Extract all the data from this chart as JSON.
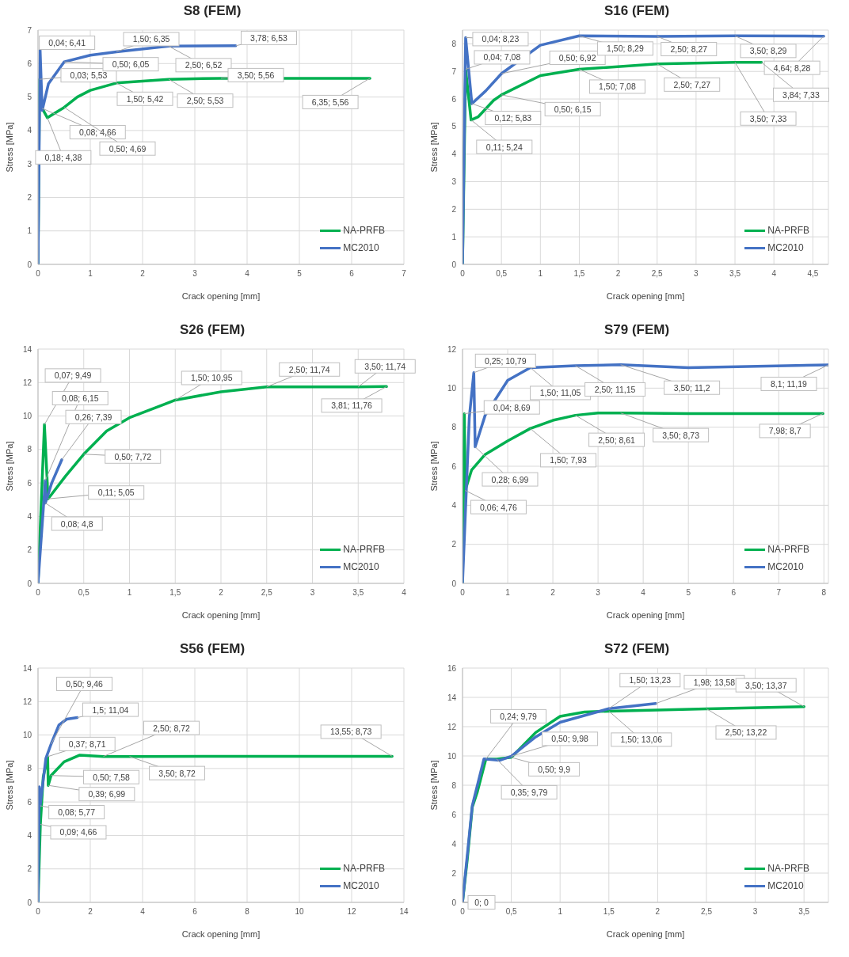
{
  "chart_data": [
    {
      "type": "line",
      "title": "S8 (FEM)",
      "xlabel": "Crack opening [mm]",
      "ylabel": "Stress [MPa]",
      "xlim": [
        0,
        7
      ],
      "xticks": [
        0,
        1,
        2,
        3,
        4,
        5,
        6,
        7
      ],
      "ylim": [
        0,
        7
      ],
      "yticks": [
        0,
        1,
        2,
        3,
        4,
        5,
        6,
        7
      ],
      "grid": true,
      "legend": "bottom right",
      "marker": "none",
      "series": [
        {
          "name": "NA-PRFB",
          "color": "#00b050",
          "x": [
            0,
            0.03,
            0.08,
            0.18,
            0.3,
            0.5,
            0.75,
            1,
            1.5,
            2.5,
            3.5,
            6.35
          ],
          "values": [
            0,
            5.53,
            4.66,
            4.38,
            4.5,
            4.69,
            5.0,
            5.2,
            5.42,
            5.53,
            5.56,
            5.56
          ]
        },
        {
          "name": "MC2010",
          "color": "#4472c4",
          "x": [
            0,
            0.04,
            0.08,
            0.2,
            0.5,
            1,
            1.5,
            2.5,
            3.78
          ],
          "values": [
            0,
            6.41,
            4.6,
            5.4,
            6.05,
            6.25,
            6.35,
            6.52,
            6.53
          ]
        }
      ],
      "annotations": [
        {
          "text": "0,04; 6,41",
          "x": 0.04,
          "y": 6.41
        },
        {
          "text": "0,03; 5,53",
          "x": 0.03,
          "y": 5.53
        },
        {
          "text": "0,08; 4,66",
          "x": 0.08,
          "y": 4.66
        },
        {
          "text": "0,18; 4,38",
          "x": 0.18,
          "y": 4.38
        },
        {
          "text": "0,50; 4,69",
          "x": 0.5,
          "y": 4.69
        },
        {
          "text": "0,50; 6,05",
          "x": 0.5,
          "y": 6.05
        },
        {
          "text": "1,50; 6,35",
          "x": 1.5,
          "y": 6.35
        },
        {
          "text": "2,50; 6,52",
          "x": 2.5,
          "y": 6.52
        },
        {
          "text": "3,78; 6,53",
          "x": 3.78,
          "y": 6.53
        },
        {
          "text": "1,50; 5,42",
          "x": 1.5,
          "y": 5.42
        },
        {
          "text": "2,50; 5,53",
          "x": 2.5,
          "y": 5.53
        },
        {
          "text": "3,50; 5,56",
          "x": 3.5,
          "y": 5.56
        },
        {
          "text": "6,35; 5,56",
          "x": 6.35,
          "y": 5.56
        }
      ]
    },
    {
      "type": "line",
      "title": "S16 (FEM)",
      "xlabel": "Crack opening [mm]",
      "ylabel": "Stress [MPa]",
      "xlim": [
        0,
        4.7
      ],
      "xticks": [
        0,
        {
          "value": 0.5,
          "label": "0,5"
        },
        1,
        {
          "value": 1.5,
          "label": "1,5"
        },
        2,
        {
          "value": 2.5,
          "label": "2,5"
        },
        3,
        {
          "value": 3.5,
          "label": "3,5"
        },
        4,
        {
          "value": 4.5,
          "label": "4,5"
        }
      ],
      "ylim": [
        0,
        8.5
      ],
      "yticks": [
        0,
        1,
        2,
        3,
        4,
        5,
        6,
        7,
        8
      ],
      "grid": true,
      "legend": "bottom right",
      "marker": "none",
      "series": [
        {
          "name": "NA-PRFB",
          "color": "#00b050",
          "x": [
            0,
            0.04,
            0.11,
            0.2,
            0.4,
            0.5,
            1,
            1.5,
            2.5,
            3.5,
            3.84
          ],
          "values": [
            0,
            7.08,
            5.24,
            5.35,
            5.95,
            6.15,
            6.85,
            7.08,
            7.27,
            7.33,
            7.33
          ]
        },
        {
          "name": "MC2010",
          "color": "#4472c4",
          "x": [
            0,
            0.04,
            0.12,
            0.3,
            0.5,
            1,
            1.5,
            2.5,
            3.5,
            4.64
          ],
          "values": [
            0,
            8.23,
            5.83,
            6.3,
            6.92,
            7.95,
            8.29,
            8.27,
            8.29,
            8.28
          ]
        }
      ],
      "annotations": [
        {
          "text": "0,04; 8,23",
          "x": 0.04,
          "y": 8.23
        },
        {
          "text": "0,04; 7,08",
          "x": 0.04,
          "y": 7.08
        },
        {
          "text": "0,12; 5,83",
          "x": 0.12,
          "y": 5.83
        },
        {
          "text": "0,11; 5,24",
          "x": 0.11,
          "y": 5.24
        },
        {
          "text": "0,50; 6,92",
          "x": 0.5,
          "y": 6.92
        },
        {
          "text": "0,50; 6,15",
          "x": 0.5,
          "y": 6.15
        },
        {
          "text": "1,50; 8,29",
          "x": 1.5,
          "y": 8.29
        },
        {
          "text": "1,50; 7,08",
          "x": 1.5,
          "y": 7.08
        },
        {
          "text": "2,50; 8,27",
          "x": 2.5,
          "y": 8.27
        },
        {
          "text": "2,50; 7,27",
          "x": 2.5,
          "y": 7.27
        },
        {
          "text": "3,50; 8,29",
          "x": 3.5,
          "y": 8.29
        },
        {
          "text": "3,50; 7,33",
          "x": 3.5,
          "y": 7.33
        },
        {
          "text": "4,64; 8,28",
          "x": 4.64,
          "y": 8.28
        },
        {
          "text": "3,84; 7,33",
          "x": 3.84,
          "y": 7.33
        }
      ]
    },
    {
      "type": "line",
      "title": "S26 (FEM)",
      "xlabel": "Crack opening [mm]",
      "ylabel": "Stress [MPa]",
      "xlim": [
        0,
        4
      ],
      "xticks": [
        0,
        {
          "value": 0.5,
          "label": "0,5"
        },
        1,
        {
          "value": 1.5,
          "label": "1,5"
        },
        2,
        {
          "value": 2.5,
          "label": "2,5"
        },
        3,
        {
          "value": 3.5,
          "label": "3,5"
        },
        4
      ],
      "ylim": [
        0,
        14
      ],
      "yticks": [
        0,
        2,
        4,
        6,
        8,
        10,
        12,
        14
      ],
      "grid": true,
      "legend": "bottom right",
      "marker": "none",
      "series": [
        {
          "name": "NA-PRFB",
          "color": "#00b050",
          "x": [
            0,
            0.07,
            0.11,
            0.3,
            0.5,
            0.75,
            1,
            1.5,
            2,
            2.5,
            3.5,
            3.81
          ],
          "values": [
            0,
            9.49,
            5.05,
            6.4,
            7.72,
            9.1,
            9.9,
            10.95,
            11.45,
            11.74,
            11.74,
            11.76
          ]
        },
        {
          "name": "MC2010",
          "color": "#4472c4",
          "x": [
            0,
            0.08,
            0.08,
            0.15,
            0.26
          ],
          "values": [
            0,
            6.15,
            4.8,
            6.0,
            7.39
          ]
        }
      ],
      "annotations": [
        {
          "text": "0,07; 9,49",
          "x": 0.07,
          "y": 9.49
        },
        {
          "text": "0,08; 6,15",
          "x": 0.08,
          "y": 6.15
        },
        {
          "text": "0,26; 7,39",
          "x": 0.26,
          "y": 7.39
        },
        {
          "text": "0,11; 5,05",
          "x": 0.11,
          "y": 5.05
        },
        {
          "text": "0,08; 4,8",
          "x": 0.08,
          "y": 4.8
        },
        {
          "text": "0,50; 7,72",
          "x": 0.5,
          "y": 7.72
        },
        {
          "text": "1,50; 10,95",
          "x": 1.5,
          "y": 10.95
        },
        {
          "text": "2,50; 11,74",
          "x": 2.5,
          "y": 11.74
        },
        {
          "text": "3,50; 11,74",
          "x": 3.5,
          "y": 11.74
        },
        {
          "text": "3,81; 11,76",
          "x": 3.81,
          "y": 11.76
        }
      ]
    },
    {
      "type": "line",
      "title": "S79 (FEM)",
      "xlabel": "Crack opening [mm]",
      "ylabel": "Stress [MPa]",
      "xlim": [
        0,
        8.1
      ],
      "xticks": [
        0,
        1,
        2,
        3,
        4,
        5,
        6,
        7,
        8
      ],
      "ylim": [
        0,
        12
      ],
      "yticks": [
        0,
        2,
        4,
        6,
        8,
        10,
        12
      ],
      "grid": true,
      "legend": "bottom right",
      "marker": "none",
      "series": [
        {
          "name": "NA-PRFB",
          "color": "#00b050",
          "x": [
            0,
            0.04,
            0.06,
            0.2,
            0.5,
            1,
            1.5,
            2,
            2.5,
            3,
            3.5,
            5,
            7.98
          ],
          "values": [
            0,
            8.69,
            4.76,
            5.8,
            6.6,
            7.3,
            7.93,
            8.35,
            8.61,
            8.73,
            8.73,
            8.7,
            8.7
          ]
        },
        {
          "name": "MC2010",
          "color": "#4472c4",
          "x": [
            0,
            0.15,
            0.25,
            0.28,
            0.5,
            1,
            1.5,
            2.5,
            3.5,
            5,
            8.1
          ],
          "values": [
            0,
            8.5,
            10.79,
            6.99,
            8.6,
            10.4,
            11.05,
            11.15,
            11.2,
            11.05,
            11.19
          ]
        }
      ],
      "annotations": [
        {
          "text": "0,25; 10,79",
          "x": 0.25,
          "y": 10.79
        },
        {
          "text": "0,04; 8,69",
          "x": 0.04,
          "y": 8.69
        },
        {
          "text": "0,28; 6,99",
          "x": 0.28,
          "y": 6.99
        },
        {
          "text": "0,06; 4,76",
          "x": 0.06,
          "y": 4.76
        },
        {
          "text": "1,50; 11,05",
          "x": 1.5,
          "y": 11.05
        },
        {
          "text": "2,50; 11,15",
          "x": 2.5,
          "y": 11.15
        },
        {
          "text": "3,50; 11,2",
          "x": 3.5,
          "y": 11.2
        },
        {
          "text": "8,1; 11,19",
          "x": 8.1,
          "y": 11.19
        },
        {
          "text": "1,50; 7,93",
          "x": 1.5,
          "y": 7.93
        },
        {
          "text": "2,50; 8,61",
          "x": 2.5,
          "y": 8.61
        },
        {
          "text": "3,50; 8,73",
          "x": 3.5,
          "y": 8.73
        },
        {
          "text": "7,98; 8,7",
          "x": 7.98,
          "y": 8.7
        }
      ]
    },
    {
      "type": "line",
      "title": "S56 (FEM)",
      "xlabel": "Crack opening [mm]",
      "ylabel": "Stress [MPa]",
      "xlim": [
        0,
        14
      ],
      "xticks": [
        0,
        2,
        4,
        6,
        8,
        10,
        12,
        14
      ],
      "ylim": [
        0,
        14
      ],
      "yticks": [
        0,
        2,
        4,
        6,
        8,
        10,
        12,
        14
      ],
      "grid": true,
      "legend": "bottom right",
      "marker": "none",
      "series": [
        {
          "name": "NA-PRFB",
          "color": "#00b050",
          "x": [
            0,
            0.09,
            0.2,
            0.37,
            0.39,
            0.5,
            1,
            1.6,
            2.5,
            3.5,
            8,
            13.55
          ],
          "values": [
            0,
            4.66,
            7.5,
            8.71,
            6.99,
            7.58,
            8.4,
            8.8,
            8.72,
            8.72,
            8.73,
            8.73
          ]
        },
        {
          "name": "MC2010",
          "color": "#4472c4",
          "x": [
            0,
            0.05,
            0.08,
            0.3,
            0.5,
            0.8,
            1.1,
            1.5
          ],
          "values": [
            0,
            6.9,
            5.77,
            8.6,
            9.46,
            10.6,
            10.95,
            11.04
          ]
        }
      ],
      "annotations": [
        {
          "text": "0,50; 9,46",
          "x": 0.5,
          "y": 9.46
        },
        {
          "text": "1,5; 11,04",
          "x": 1.5,
          "y": 11.04
        },
        {
          "text": "0,37; 8,71",
          "x": 0.37,
          "y": 8.71
        },
        {
          "text": "0,50; 7,58",
          "x": 0.5,
          "y": 7.58
        },
        {
          "text": "0,39; 6,99",
          "x": 0.39,
          "y": 6.99
        },
        {
          "text": "0,08; 5,77",
          "x": 0.08,
          "y": 5.77
        },
        {
          "text": "0,09; 4,66",
          "x": 0.09,
          "y": 4.66
        },
        {
          "text": "2,50; 8,72",
          "x": 2.5,
          "y": 8.72
        },
        {
          "text": "3,50; 8,72",
          "x": 3.5,
          "y": 8.72
        },
        {
          "text": "13,55; 8,73",
          "x": 13.55,
          "y": 8.73
        }
      ]
    },
    {
      "type": "line",
      "title": "S72 (FEM)",
      "xlabel": "Crack opening [mm]",
      "ylabel": "Stress [MPa]",
      "xlim": [
        0,
        3.75
      ],
      "xticks": [
        0,
        {
          "value": 0.5,
          "label": "0,5"
        },
        1,
        {
          "value": 1.5,
          "label": "1,5"
        },
        2,
        {
          "value": 2.5,
          "label": "2,5"
        },
        3,
        {
          "value": 3.5,
          "label": "3,5"
        }
      ],
      "ylim": [
        0,
        16
      ],
      "yticks": [
        0,
        2,
        4,
        6,
        8,
        10,
        12,
        14,
        16
      ],
      "grid": true,
      "legend": "bottom right",
      "marker": "none",
      "series": [
        {
          "name": "NA-PRFB",
          "color": "#00b050",
          "x": [
            0,
            0.05,
            0.1,
            0.15,
            0.24,
            0.35,
            0.5,
            0.75,
            1,
            1.25,
            1.5,
            2.5,
            3.5
          ],
          "values": [
            0,
            3,
            6.5,
            7.5,
            9.79,
            9.79,
            9.9,
            11.6,
            12.7,
            13.0,
            13.06,
            13.22,
            13.37
          ]
        },
        {
          "name": "MC2010",
          "color": "#4472c4",
          "x": [
            0,
            0.1,
            0.22,
            0.38,
            0.5,
            0.75,
            1,
            1.5,
            1.98
          ],
          "values": [
            0,
            6.6,
            9.8,
            9.7,
            9.98,
            11.3,
            12.3,
            13.23,
            13.58
          ]
        }
      ],
      "annotations": [
        {
          "text": "0; 0",
          "x": 0,
          "y": 0
        },
        {
          "text": "0,24; 9,79",
          "x": 0.24,
          "y": 9.79
        },
        {
          "text": "0,35; 9,79",
          "x": 0.35,
          "y": 9.79
        },
        {
          "text": "0,50; 9,9",
          "x": 0.5,
          "y": 9.9
        },
        {
          "text": "0,50; 9,98",
          "x": 0.5,
          "y": 9.98
        },
        {
          "text": "1,50; 13,23",
          "x": 1.5,
          "y": 13.23
        },
        {
          "text": "1,50; 13,06",
          "x": 1.5,
          "y": 13.06
        },
        {
          "text": "1,98; 13,58",
          "x": 1.98,
          "y": 13.58
        },
        {
          "text": "2,50; 13,22",
          "x": 2.5,
          "y": 13.22
        },
        {
          "text": "3,50; 13,37",
          "x": 3.5,
          "y": 13.37
        }
      ]
    }
  ]
}
